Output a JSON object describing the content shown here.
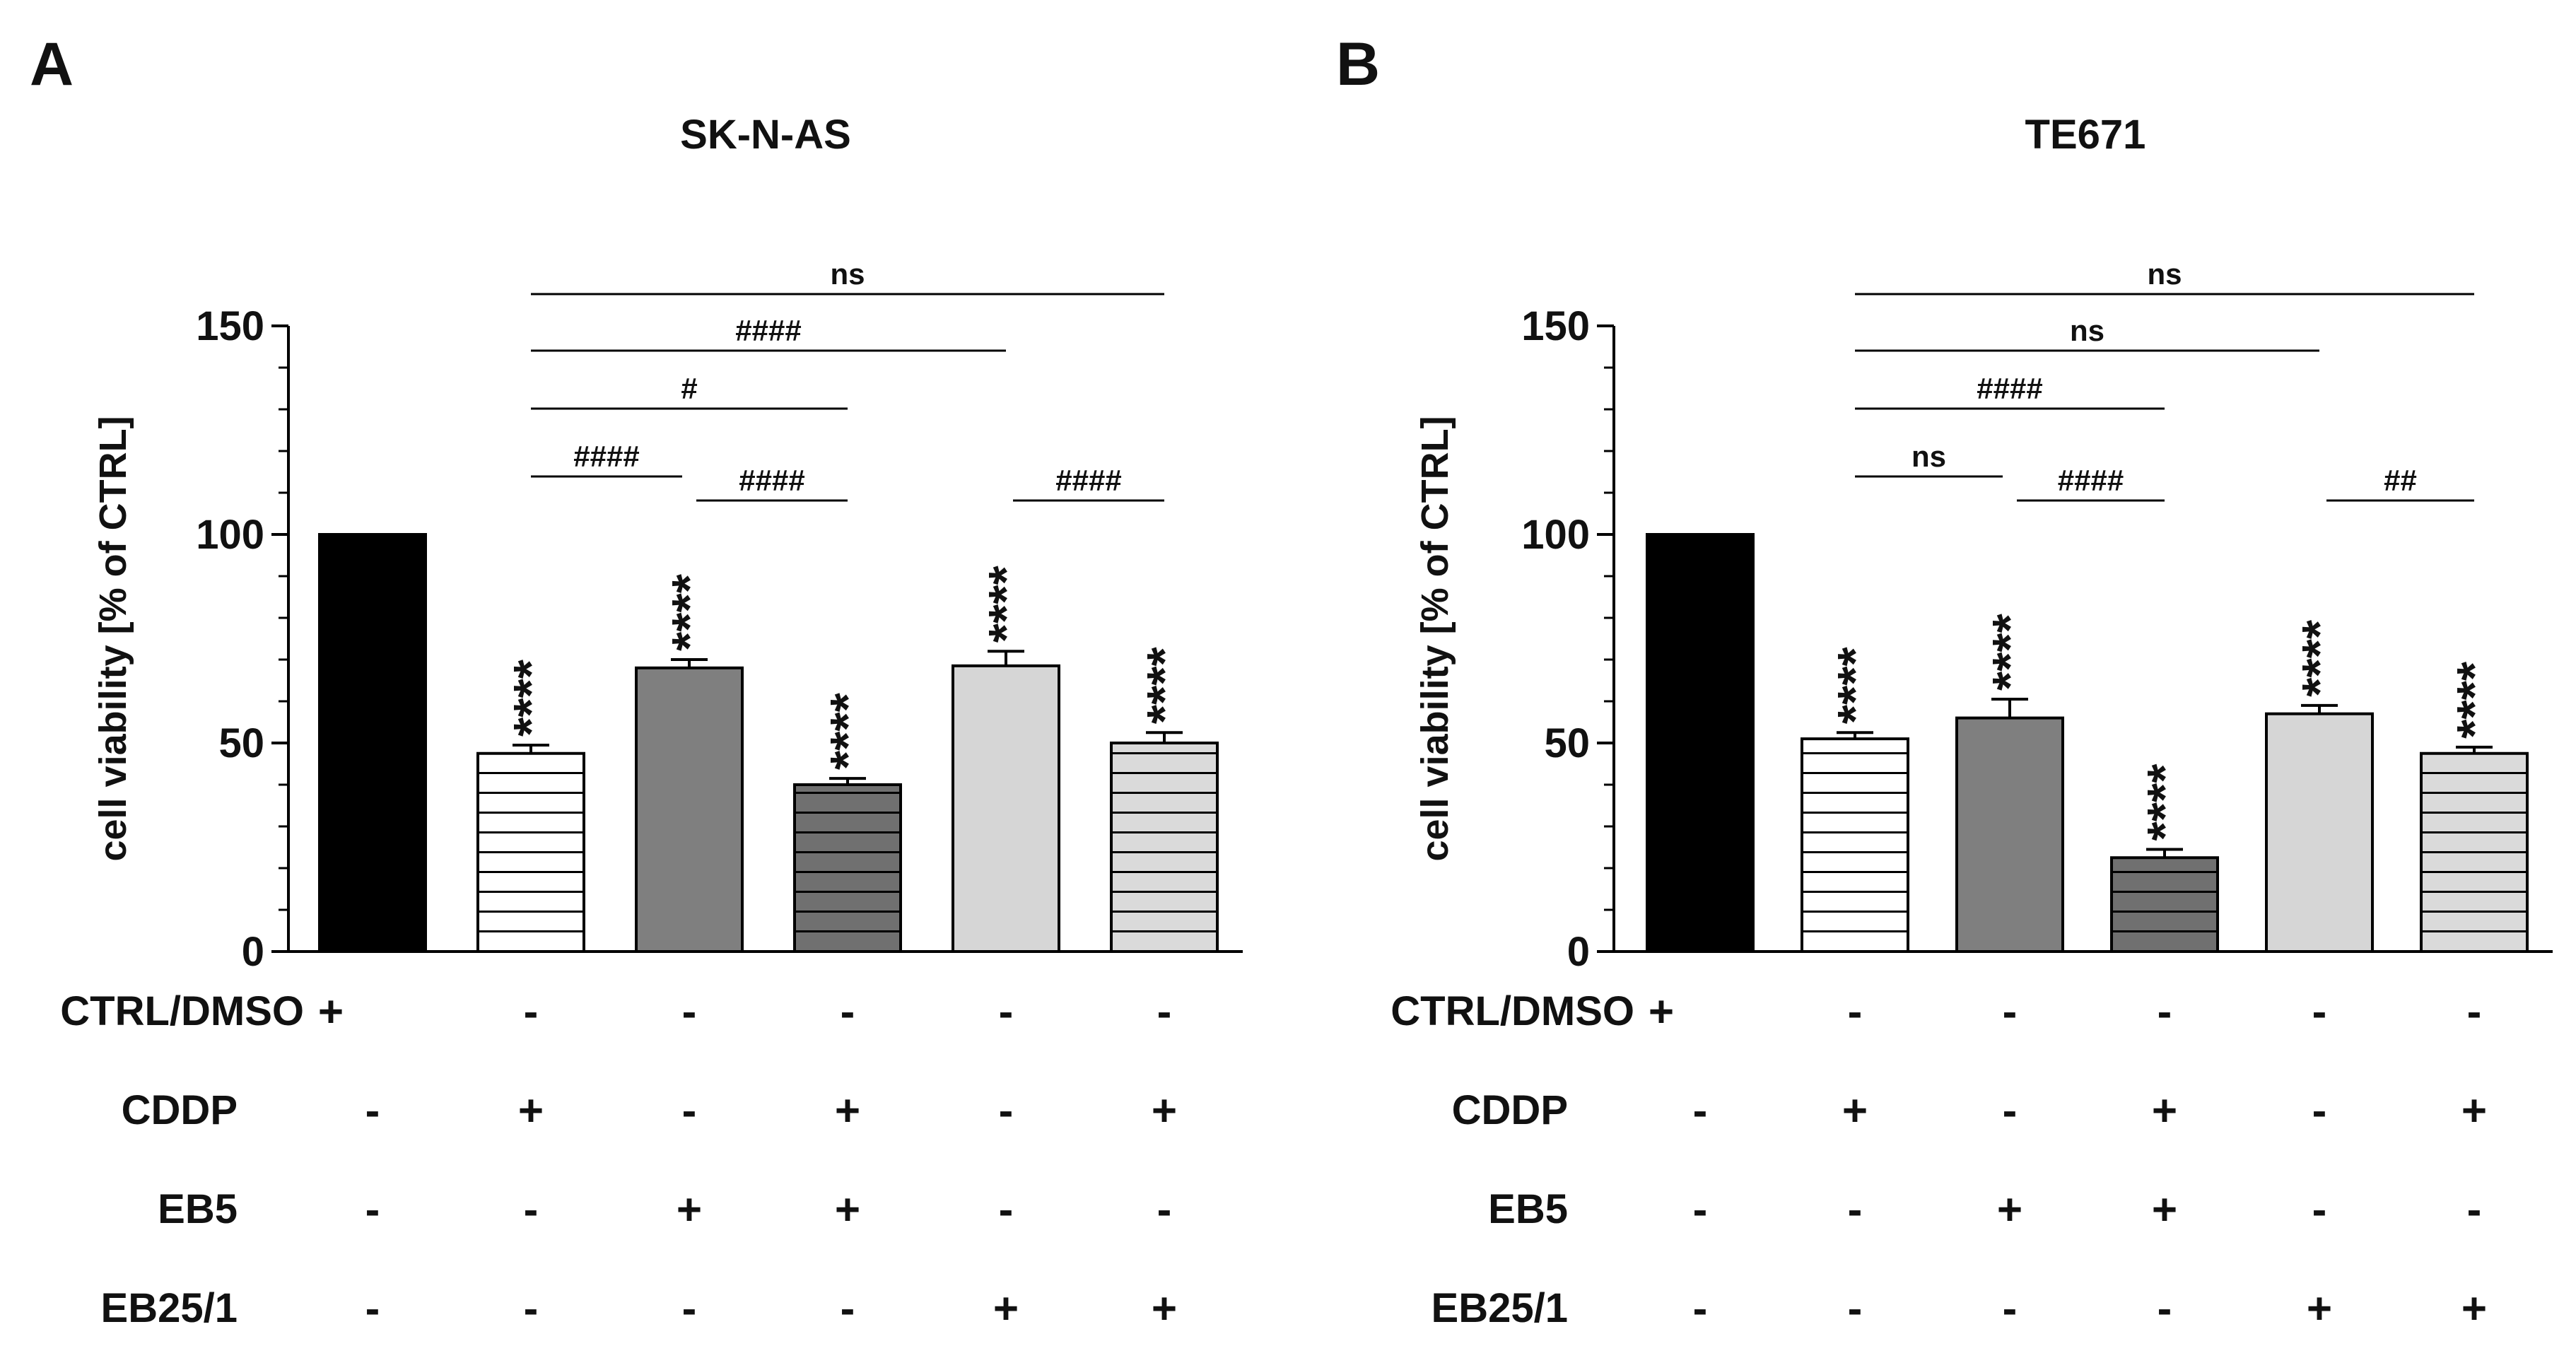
{
  "chart_data": [
    {
      "type": "bar",
      "panel_label": "A",
      "title": "SK-N-AS",
      "ylabel": "cell viability [% of CTRL]",
      "ylim": [
        0,
        150
      ],
      "yticks": [
        0,
        50,
        100,
        150
      ],
      "grid": false,
      "legend": "none",
      "categories": [
        "CTRL/DMSO",
        "CDDP",
        "EB5",
        "CDDP + EB5",
        "EB25/1",
        "CDDP + EB25/1"
      ],
      "values": [
        100,
        47.5,
        68,
        40,
        68.5,
        50
      ],
      "errors": [
        0,
        2,
        2,
        1.5,
        3.5,
        2.5
      ],
      "fill_colors": [
        "#000000",
        "#ffffff",
        "#7f7f7f",
        "#707070",
        "#d6d6d6",
        "#dadada"
      ],
      "hatched": [
        false,
        true,
        false,
        true,
        false,
        true
      ],
      "significance_above_bar": [
        "",
        "****",
        "****",
        "****",
        "****",
        "****"
      ],
      "comparisons": [
        {
          "from": 1,
          "to": 2,
          "label": "####",
          "level": 0
        },
        {
          "from": 2,
          "to": 3,
          "label": "####",
          "level": -1
        },
        {
          "from": 4,
          "to": 5,
          "label": "####",
          "level": -1
        },
        {
          "from": 1,
          "to": 3,
          "label": "#",
          "level": 1
        },
        {
          "from": 1,
          "to": 4,
          "label": "####",
          "level": 2
        },
        {
          "from": 1,
          "to": 5,
          "label": "ns",
          "level": 3
        }
      ],
      "treatment_rows": [
        {
          "label": "CTRL/DMSO",
          "marks": [
            "+",
            "-",
            "-",
            "-",
            "-",
            "-"
          ]
        },
        {
          "label": "CDDP",
          "marks": [
            "-",
            "+",
            "-",
            "+",
            "-",
            "+"
          ]
        },
        {
          "label": "EB5",
          "marks": [
            "-",
            "-",
            "+",
            "+",
            "-",
            "-"
          ]
        },
        {
          "label": "EB25/1",
          "marks": [
            "-",
            "-",
            "-",
            "-",
            "+",
            "+"
          ]
        }
      ]
    },
    {
      "type": "bar",
      "panel_label": "B",
      "title": "TE671",
      "ylabel": "cell viability [% of CTRL]",
      "ylim": [
        0,
        150
      ],
      "yticks": [
        0,
        50,
        100,
        150
      ],
      "grid": false,
      "legend": "none",
      "categories": [
        "CTRL/DMSO",
        "CDDP",
        "EB5",
        "CDDP + EB5",
        "EB25/1",
        "CDDP + EB25/1"
      ],
      "values": [
        100,
        51,
        56,
        22.5,
        57,
        47.5
      ],
      "errors": [
        0,
        1.5,
        4.5,
        2,
        2,
        1.5
      ],
      "fill_colors": [
        "#000000",
        "#ffffff",
        "#7f7f7f",
        "#707070",
        "#d6d6d6",
        "#dadada"
      ],
      "hatched": [
        false,
        true,
        false,
        true,
        false,
        true
      ],
      "significance_above_bar": [
        "",
        "****",
        "****",
        "****",
        "****",
        "****"
      ],
      "comparisons": [
        {
          "from": 1,
          "to": 2,
          "label": "ns",
          "level": 0
        },
        {
          "from": 2,
          "to": 3,
          "label": "####",
          "level": -1
        },
        {
          "from": 4,
          "to": 5,
          "label": "##",
          "level": -1
        },
        {
          "from": 1,
          "to": 3,
          "label": "####",
          "level": 1
        },
        {
          "from": 1,
          "to": 4,
          "label": "ns",
          "level": 2
        },
        {
          "from": 1,
          "to": 5,
          "label": "ns",
          "level": 3
        }
      ],
      "treatment_rows": [
        {
          "label": "CTRL/DMSO",
          "marks": [
            "+",
            "-",
            "-",
            "-",
            "-",
            "-"
          ]
        },
        {
          "label": "CDDP",
          "marks": [
            "-",
            "+",
            "-",
            "+",
            "-",
            "+"
          ]
        },
        {
          "label": "EB5",
          "marks": [
            "-",
            "-",
            "+",
            "+",
            "-",
            "-"
          ]
        },
        {
          "label": "EB25/1",
          "marks": [
            "-",
            "-",
            "-",
            "-",
            "+",
            "+"
          ]
        }
      ]
    }
  ]
}
